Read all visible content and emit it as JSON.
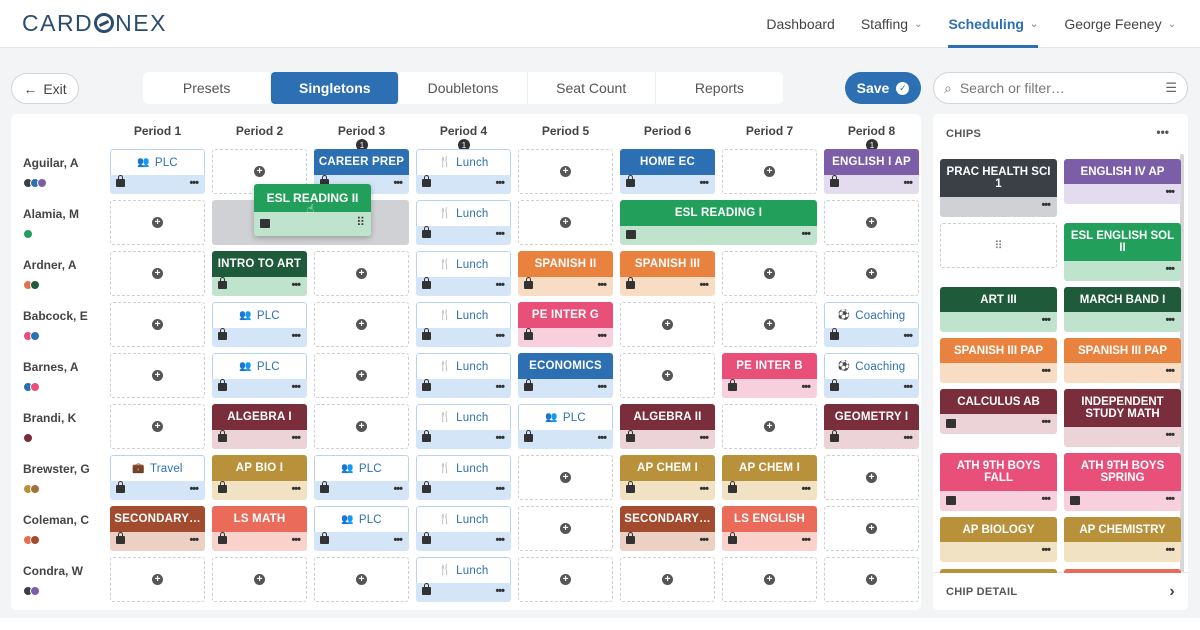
{
  "brand": {
    "logo": "CARDONEX"
  },
  "nav": {
    "items": [
      {
        "label": "Dashboard",
        "caret": false,
        "active": false
      },
      {
        "label": "Staffing",
        "caret": true,
        "active": false
      },
      {
        "label": "Scheduling",
        "caret": true,
        "active": true
      },
      {
        "label": "George Feeney",
        "caret": true,
        "active": false
      }
    ]
  },
  "toolbar": {
    "exit_label": "Exit",
    "tabs": [
      "Presets",
      "Singletons",
      "Doubletons",
      "Seat Count",
      "Reports"
    ],
    "active_tab": "Singletons",
    "save_label": "Save",
    "search_placeholder": "Search or filter…"
  },
  "grid": {
    "periods": [
      "Period 1",
      "Period 2",
      "Period 3",
      "Period 4",
      "Period 5",
      "Period 6",
      "Period 7",
      "Period 8"
    ],
    "period_badges": {
      "Period 3": "1",
      "Period 4": "1",
      "Period 8": "1"
    },
    "teachers": [
      {
        "name": "Aguilar, A",
        "dots": [
          "#3b3f46",
          "#2d6fb3",
          "#7b5ea7"
        ]
      },
      {
        "name": "Alamia, M",
        "dots": [
          "#22a05b"
        ]
      },
      {
        "name": "Ardner, A",
        "dots": [
          "#e76f51",
          "#1f5a3a"
        ]
      },
      {
        "name": "Babcock, E",
        "dots": [
          "#e8507a",
          "#2d6fb3"
        ]
      },
      {
        "name": "Barnes, A",
        "dots": [
          "#2d6fb3",
          "#e8507a"
        ]
      },
      {
        "name": "Brandi, K",
        "dots": [
          "#7a2e3b"
        ]
      },
      {
        "name": "Brewster, G",
        "dots": [
          "#b9913a",
          "#a0733a"
        ]
      },
      {
        "name": "Coleman, C",
        "dots": [
          "#e76f51",
          "#a34b2f"
        ]
      },
      {
        "name": "Condra, W",
        "dots": [
          "#3b3f46",
          "#7b5ea7"
        ]
      }
    ],
    "cells": [
      [
        {
          "t": "light",
          "label": "PLC",
          "icon": "people"
        },
        {
          "t": "empty"
        },
        {
          "t": "chip",
          "label": "CAREER PREP",
          "color": "#2d6fb3",
          "sub": "#d3e5f6",
          "fg": "#fff"
        },
        {
          "t": "light",
          "label": "Lunch",
          "icon": "fork"
        },
        {
          "t": "empty"
        },
        {
          "t": "chip",
          "label": "HOME EC",
          "color": "#2d6fb3",
          "sub": "#d3e5f6",
          "fg": "#fff"
        },
        {
          "t": "empty"
        },
        {
          "t": "chip",
          "label": "ENGLISH I AP",
          "color": "#7b5ea7",
          "sub": "#e3dcef",
          "fg": "#fff"
        }
      ],
      [
        {
          "t": "empty"
        },
        {
          "t": "gray"
        },
        {
          "t": "gray"
        },
        {
          "t": "light",
          "label": "Lunch",
          "icon": "fork"
        },
        {
          "t": "empty"
        },
        {
          "t": "wide",
          "label": "ESL READING I",
          "color": "#22a05b",
          "sub": "#bfe3cd",
          "fg": "#fff"
        },
        {
          "t": "skip"
        },
        {
          "t": "empty"
        }
      ],
      [
        {
          "t": "empty"
        },
        {
          "t": "chip",
          "label": "INTRO TO ART",
          "color": "#1f5a3a",
          "sub": "#bfe3cd",
          "fg": "#fff"
        },
        {
          "t": "empty"
        },
        {
          "t": "light",
          "label": "Lunch",
          "icon": "fork"
        },
        {
          "t": "chip",
          "label": "SPANISH II",
          "color": "#e9823e",
          "sub": "#f8ddc4",
          "fg": "#fff"
        },
        {
          "t": "chip",
          "label": "SPANISH III",
          "color": "#e9823e",
          "sub": "#f8ddc4",
          "fg": "#fff"
        },
        {
          "t": "empty"
        },
        {
          "t": "empty"
        }
      ],
      [
        {
          "t": "empty"
        },
        {
          "t": "light",
          "label": "PLC",
          "icon": "people"
        },
        {
          "t": "empty"
        },
        {
          "t": "light",
          "label": "Lunch",
          "icon": "fork"
        },
        {
          "t": "chip",
          "label": "PE INTER G",
          "color": "#e8507a",
          "sub": "#f8cfdc",
          "fg": "#fff"
        },
        {
          "t": "empty"
        },
        {
          "t": "empty"
        },
        {
          "t": "light",
          "label": "Coaching",
          "icon": "ball"
        }
      ],
      [
        {
          "t": "empty"
        },
        {
          "t": "light",
          "label": "PLC",
          "icon": "people"
        },
        {
          "t": "empty"
        },
        {
          "t": "light",
          "label": "Lunch",
          "icon": "fork"
        },
        {
          "t": "chip",
          "label": "ECONOMICS",
          "color": "#2d6fb3",
          "sub": "#d3e5f6",
          "fg": "#fff"
        },
        {
          "t": "empty"
        },
        {
          "t": "chip",
          "label": "PE INTER B",
          "color": "#e8507a",
          "sub": "#f8cfdc",
          "fg": "#fff"
        },
        {
          "t": "light",
          "label": "Coaching",
          "icon": "ball"
        }
      ],
      [
        {
          "t": "empty"
        },
        {
          "t": "chip",
          "label": "ALGEBRA I",
          "color": "#7a2e3b",
          "sub": "#ecd3d8",
          "fg": "#fff"
        },
        {
          "t": "empty"
        },
        {
          "t": "light",
          "label": "Lunch",
          "icon": "fork"
        },
        {
          "t": "light",
          "label": "PLC",
          "icon": "people"
        },
        {
          "t": "chip",
          "label": "ALGEBRA II",
          "color": "#7a2e3b",
          "sub": "#ecd3d8",
          "fg": "#fff"
        },
        {
          "t": "empty"
        },
        {
          "t": "chip",
          "label": "GEOMETRY I",
          "color": "#7a2e3b",
          "sub": "#ecd3d8",
          "fg": "#fff"
        }
      ],
      [
        {
          "t": "light",
          "label": "Travel",
          "icon": "bag"
        },
        {
          "t": "chip",
          "label": "AP BIO I",
          "color": "#b9913a",
          "sub": "#f1e2c3",
          "fg": "#fff"
        },
        {
          "t": "light",
          "label": "PLC",
          "icon": "people"
        },
        {
          "t": "light",
          "label": "Lunch",
          "icon": "fork"
        },
        {
          "t": "empty"
        },
        {
          "t": "chip",
          "label": "AP CHEM I",
          "color": "#b9913a",
          "sub": "#f1e2c3",
          "fg": "#fff"
        },
        {
          "t": "chip",
          "label": "AP CHEM I",
          "color": "#b9913a",
          "sub": "#f1e2c3",
          "fg": "#fff"
        },
        {
          "t": "empty"
        }
      ],
      [
        {
          "t": "chip",
          "label": "SECONDARY…",
          "color": "#a34b2f",
          "sub": "#ecd0c4",
          "fg": "#fff"
        },
        {
          "t": "chip",
          "label": "LS MATH",
          "color": "#ea6b5a",
          "sub": "#f8d2cb",
          "fg": "#fff"
        },
        {
          "t": "light",
          "label": "PLC",
          "icon": "people"
        },
        {
          "t": "light",
          "label": "Lunch",
          "icon": "fork"
        },
        {
          "t": "empty"
        },
        {
          "t": "chip",
          "label": "SECONDARY…",
          "color": "#a34b2f",
          "sub": "#ecd0c4",
          "fg": "#fff"
        },
        {
          "t": "chip",
          "label": "LS ENGLISH",
          "color": "#ea6b5a",
          "sub": "#f8d2cb",
          "fg": "#fff"
        },
        {
          "t": "empty"
        }
      ],
      [
        {
          "t": "empty"
        },
        {
          "t": "empty"
        },
        {
          "t": "empty"
        },
        {
          "t": "light",
          "label": "Lunch",
          "icon": "fork"
        },
        {
          "t": "empty"
        },
        {
          "t": "empty"
        },
        {
          "t": "empty"
        },
        {
          "t": "empty"
        }
      ]
    ],
    "dragging_chip": {
      "label": "ESL READING II"
    }
  },
  "chips_panel": {
    "title": "CHIPS",
    "chips": [
      {
        "label": "PRAC HEALTH SCI 1",
        "color": "#3b3f46",
        "sub": "#cfd1d4",
        "tall": true
      },
      {
        "label": "ENGLISH IV AP",
        "color": "#7b5ea7",
        "sub": "#e3dcef",
        "tall": false
      },
      {
        "label": "ESL ENGLISH SOL II",
        "color": "#22a05b",
        "sub": "#bfe3cd",
        "tall": true
      },
      {
        "label": "ART III",
        "color": "#1f5a3a",
        "sub": "#bfe3cd",
        "tall": false
      },
      {
        "label": "MARCH BAND I",
        "color": "#1f5a3a",
        "sub": "#bfe3cd",
        "tall": false
      },
      {
        "label": "SPANISH III PAP",
        "color": "#e9823e",
        "sub": "#f8ddc4",
        "tall": false
      },
      {
        "label": "SPANISH III PAP",
        "color": "#e9823e",
        "sub": "#f8ddc4",
        "tall": false
      },
      {
        "label": "CALCULUS AB",
        "color": "#7a2e3b",
        "sub": "#ecd3d8",
        "tall": false
      },
      {
        "label": "INDEPENDENT STUDY MATH",
        "color": "#7a2e3b",
        "sub": "#ecd3d8",
        "tall": true
      },
      {
        "label": "ATH 9TH BOYS FALL",
        "color": "#e8507a",
        "sub": "#f8cfdc",
        "tall": true
      },
      {
        "label": "ATH 9TH BOYS SPRING",
        "color": "#e8507a",
        "sub": "#f8cfdc",
        "tall": true
      },
      {
        "label": "AP BIOLOGY",
        "color": "#b9913a",
        "sub": "#f1e2c3",
        "tall": false
      },
      {
        "label": "AP CHEMISTRY",
        "color": "#b9913a",
        "sub": "#f1e2c3",
        "tall": false
      }
    ],
    "detail_label": "CHIP DETAIL"
  }
}
